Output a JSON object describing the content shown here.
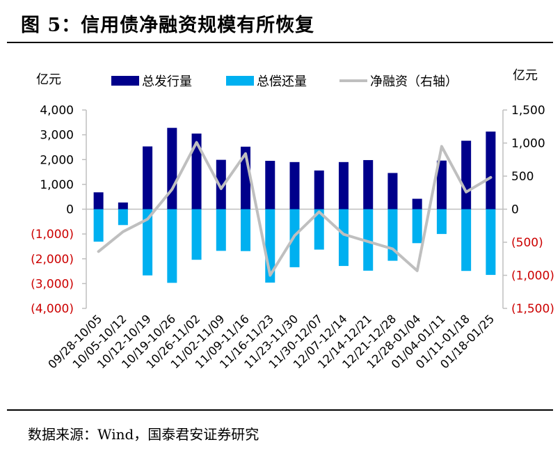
{
  "page": {
    "title": "图 5：信用债净融资规模有所恢复",
    "source": "数据来源：Wind，国泰君安证券研究"
  },
  "colors": {
    "issuance": "#00008b",
    "repayment": "#00b0f0",
    "net": "#bfbfbf",
    "negative_label": "#cc0000",
    "axis": "#bfbfbf"
  },
  "chart_data": {
    "type": "bar",
    "y_unit_left": "亿元",
    "y_unit_right": "亿元",
    "ylim_left": [
      -4000,
      4000
    ],
    "ylim_right": [
      -1500,
      1500
    ],
    "yticks_left": [
      "4,000",
      "3,000",
      "2,000",
      "1,000",
      "0",
      "(1,000)",
      "(2,000)",
      "(3,000)",
      "(4,000)"
    ],
    "yticks_right": [
      "1,500",
      "1,000",
      "500",
      "0",
      "(500)",
      "(1,000)",
      "(1,500)"
    ],
    "grid": false,
    "legend_position": "top",
    "categories": [
      "09/28-10/05",
      "10/05-10/12",
      "10/12-10/19",
      "10/19-10/26",
      "10/26-11/02",
      "11/02-11/09",
      "11/09-11/16",
      "11/16-11/23",
      "11/23-11/30",
      "11/30-12/07",
      "12/07-12/14",
      "12/14-12/21",
      "12/21-12/28",
      "12/28-01/04",
      "01/04-01/11",
      "01/11-01/18",
      "01/18-01/25"
    ],
    "series": [
      {
        "name": "总发行量",
        "type": "bar",
        "axis": "left",
        "values": [
          680,
          270,
          2530,
          3280,
          3050,
          1990,
          2520,
          1950,
          1900,
          1560,
          1900,
          1980,
          1460,
          420,
          1960,
          2760,
          3130
        ]
      },
      {
        "name": "总偿还量",
        "type": "bar",
        "axis": "left",
        "values": [
          -1310,
          -640,
          -2670,
          -2970,
          -2040,
          -1680,
          -1690,
          -2960,
          -2340,
          -1630,
          -2290,
          -2480,
          -2080,
          -1370,
          -1000,
          -2490,
          -2650
        ]
      },
      {
        "name": "净融资（右轴）",
        "type": "line",
        "axis": "right",
        "values": [
          -640,
          -340,
          -150,
          300,
          1010,
          310,
          840,
          -1000,
          -400,
          -40,
          -380,
          -490,
          -600,
          -930,
          950,
          260,
          480
        ]
      }
    ]
  }
}
